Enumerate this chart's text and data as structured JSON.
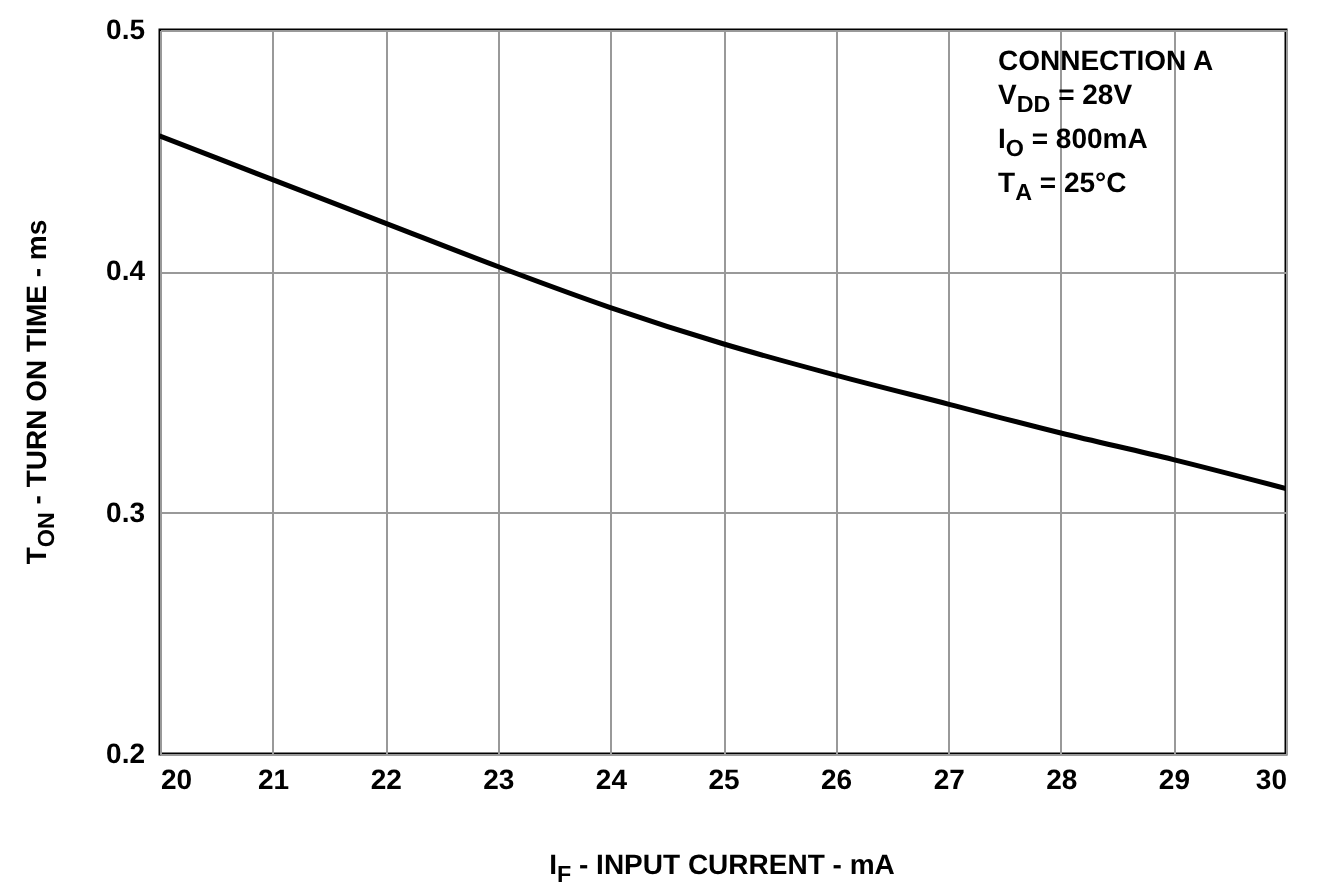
{
  "chart_data": {
    "type": "line",
    "xlabel": "I$_{F}$ - INPUT CURRENT - mA",
    "ylabel": "T$_{ON}$ - TURN ON TIME - ms",
    "annotations": [
      "CONNECTION A",
      "V$_{DD}$ = 28V",
      "I$_{O}$ = 800mA",
      "T$_{A}$ = 25°C"
    ],
    "x": [
      20,
      21,
      22,
      23,
      24,
      25,
      26,
      27,
      28,
      29,
      30
    ],
    "series": [
      {
        "color": "#000000",
        "values": [
          0.456,
          0.438,
          0.42,
          0.402,
          0.385,
          0.37,
          0.357,
          0.345,
          0.333,
          0.322,
          0.31
        ]
      }
    ],
    "xlim": [
      20,
      30
    ],
    "xticks": [
      20,
      21,
      22,
      23,
      24,
      25,
      26,
      27,
      28,
      29,
      30
    ],
    "ylim": [
      0.2,
      0.5
    ],
    "yticks": [
      0.2,
      0.3,
      0.4,
      0.5
    ],
    "grid": true,
    "line_style": "solid",
    "marker": "none"
  }
}
